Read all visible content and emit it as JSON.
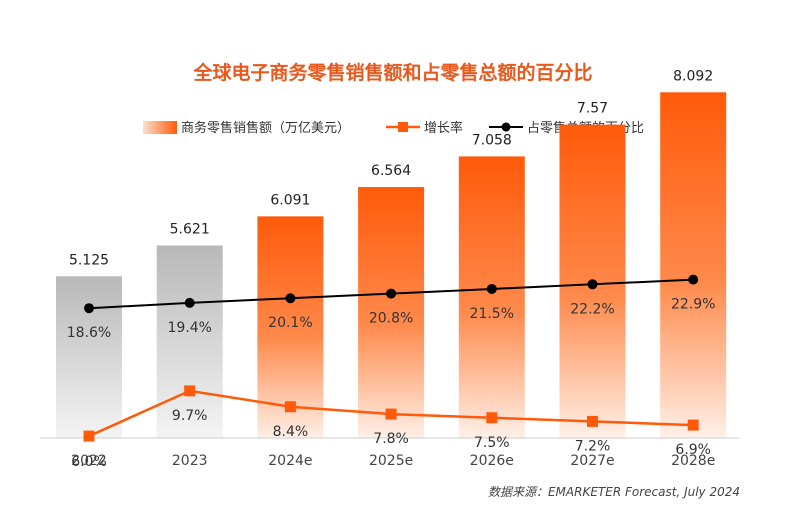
{
  "chart_data": {
    "type": "bar",
    "title": "全球电子商务零售销售额和占零售总额的百分比",
    "categories": [
      "2022",
      "2023",
      "2024e",
      "2025e",
      "2026e",
      "2027e",
      "2028e"
    ],
    "series": [
      {
        "name": "商务零售销售额（万亿美元）",
        "type": "bar",
        "values": [
          5.125,
          5.621,
          6.091,
          6.564,
          7.058,
          7.57,
          8.092
        ],
        "labels": [
          "5.125",
          "5.621",
          "6.091",
          "6.564",
          "7.058",
          "7.57",
          "8.092"
        ]
      },
      {
        "name": "增长率",
        "type": "line",
        "values": [
          6.0,
          9.7,
          8.4,
          7.8,
          7.5,
          7.2,
          6.9
        ],
        "labels": [
          "6.0%",
          "9.7%",
          "8.4%",
          "7.8%",
          "7.5%",
          "7.2%",
          "6.9%"
        ]
      },
      {
        "name": "占零售总额的百分比",
        "type": "line",
        "values": [
          18.6,
          19.4,
          20.1,
          20.8,
          21.5,
          22.2,
          22.9
        ],
        "labels": [
          "18.6%",
          "19.4%",
          "20.1%",
          "20.8%",
          "21.5%",
          "22.2%",
          "22.9%"
        ]
      }
    ],
    "actual_count": 2,
    "colors": {
      "actual": "#b8b8b8",
      "forecast": "#ff5a0a",
      "growth_line": "#ff5a0a",
      "share_line": "#000000",
      "title": "#e8591e"
    },
    "source": "数据来源：EMARKETER Forecast, July 2024"
  }
}
